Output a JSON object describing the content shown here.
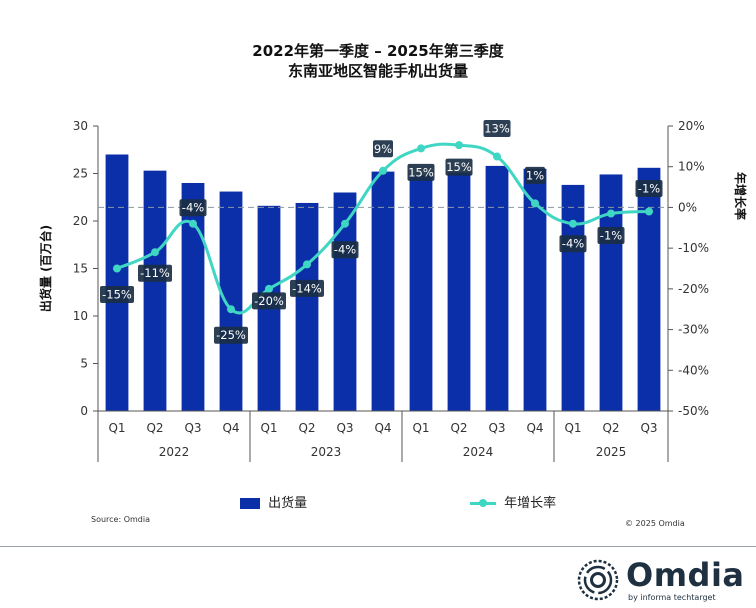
{
  "title_line1": "2022年第一季度 – 2025年第三季度",
  "title_line2": "东南亚地区智能手机出货量",
  "source": "Source: Omdia",
  "copyright": "© 2025 Omdia",
  "logo": {
    "word": "Omdia",
    "sub": "by informa techtarget"
  },
  "colors": {
    "bar": "#0a2fa8",
    "line": "#3fd6c3",
    "label_bg": "#1b2f44"
  },
  "chart_data": {
    "type": "bar+line",
    "title": "2022年第一季度 – 2025年第三季度 东南亚地区智能手机出货量",
    "ylabel_left": "出货量 (百万台)",
    "ylabel_right": "年增长率",
    "ylim_left": [
      0,
      30
    ],
    "yticks_left": [
      "0",
      "5",
      "10",
      "15",
      "20",
      "25",
      "30"
    ],
    "ylim_right": [
      -50,
      20
    ],
    "yticks_right": [
      "-50%",
      "-40%",
      "-30%",
      "-20%",
      "-10%",
      "0%",
      "10%",
      "20%"
    ],
    "quarters": [
      "Q1",
      "Q2",
      "Q3",
      "Q4",
      "Q1",
      "Q2",
      "Q3",
      "Q4",
      "Q1",
      "Q2",
      "Q3",
      "Q4",
      "Q1",
      "Q2",
      "Q3"
    ],
    "years": [
      {
        "label": "2022",
        "count": 4
      },
      {
        "label": "2023",
        "count": 4
      },
      {
        "label": "2024",
        "count": 4
      },
      {
        "label": "2025",
        "count": 3
      }
    ],
    "series": [
      {
        "name": "出货量",
        "type": "bar",
        "axis": "left",
        "values": [
          27.0,
          25.3,
          24.0,
          23.1,
          21.6,
          21.9,
          23.0,
          25.2,
          24.8,
          25.1,
          25.8,
          25.5,
          23.8,
          24.9,
          25.6
        ]
      },
      {
        "name": "年增长率",
        "type": "line",
        "axis": "right",
        "values": [
          -15,
          -11,
          -4,
          -25,
          -20,
          -14,
          -4,
          9,
          15,
          15,
          13,
          1,
          -4,
          -1,
          -1
        ],
        "labels": [
          "-15%",
          "-11%",
          "-4%",
          "-25%",
          "-20%",
          "-14%",
          "-4%",
          "9%",
          "15%",
          "15%",
          "13%",
          "1%",
          "-4%",
          "-1%",
          "-1%"
        ],
        "curve": [
          -15,
          -11,
          -4,
          -25,
          -20,
          -14,
          -4,
          9,
          14.5,
          15.3,
          12.5,
          1,
          -4,
          -1.5,
          -1
        ]
      }
    ],
    "legend": [
      "出货量",
      "年增长率"
    ]
  }
}
